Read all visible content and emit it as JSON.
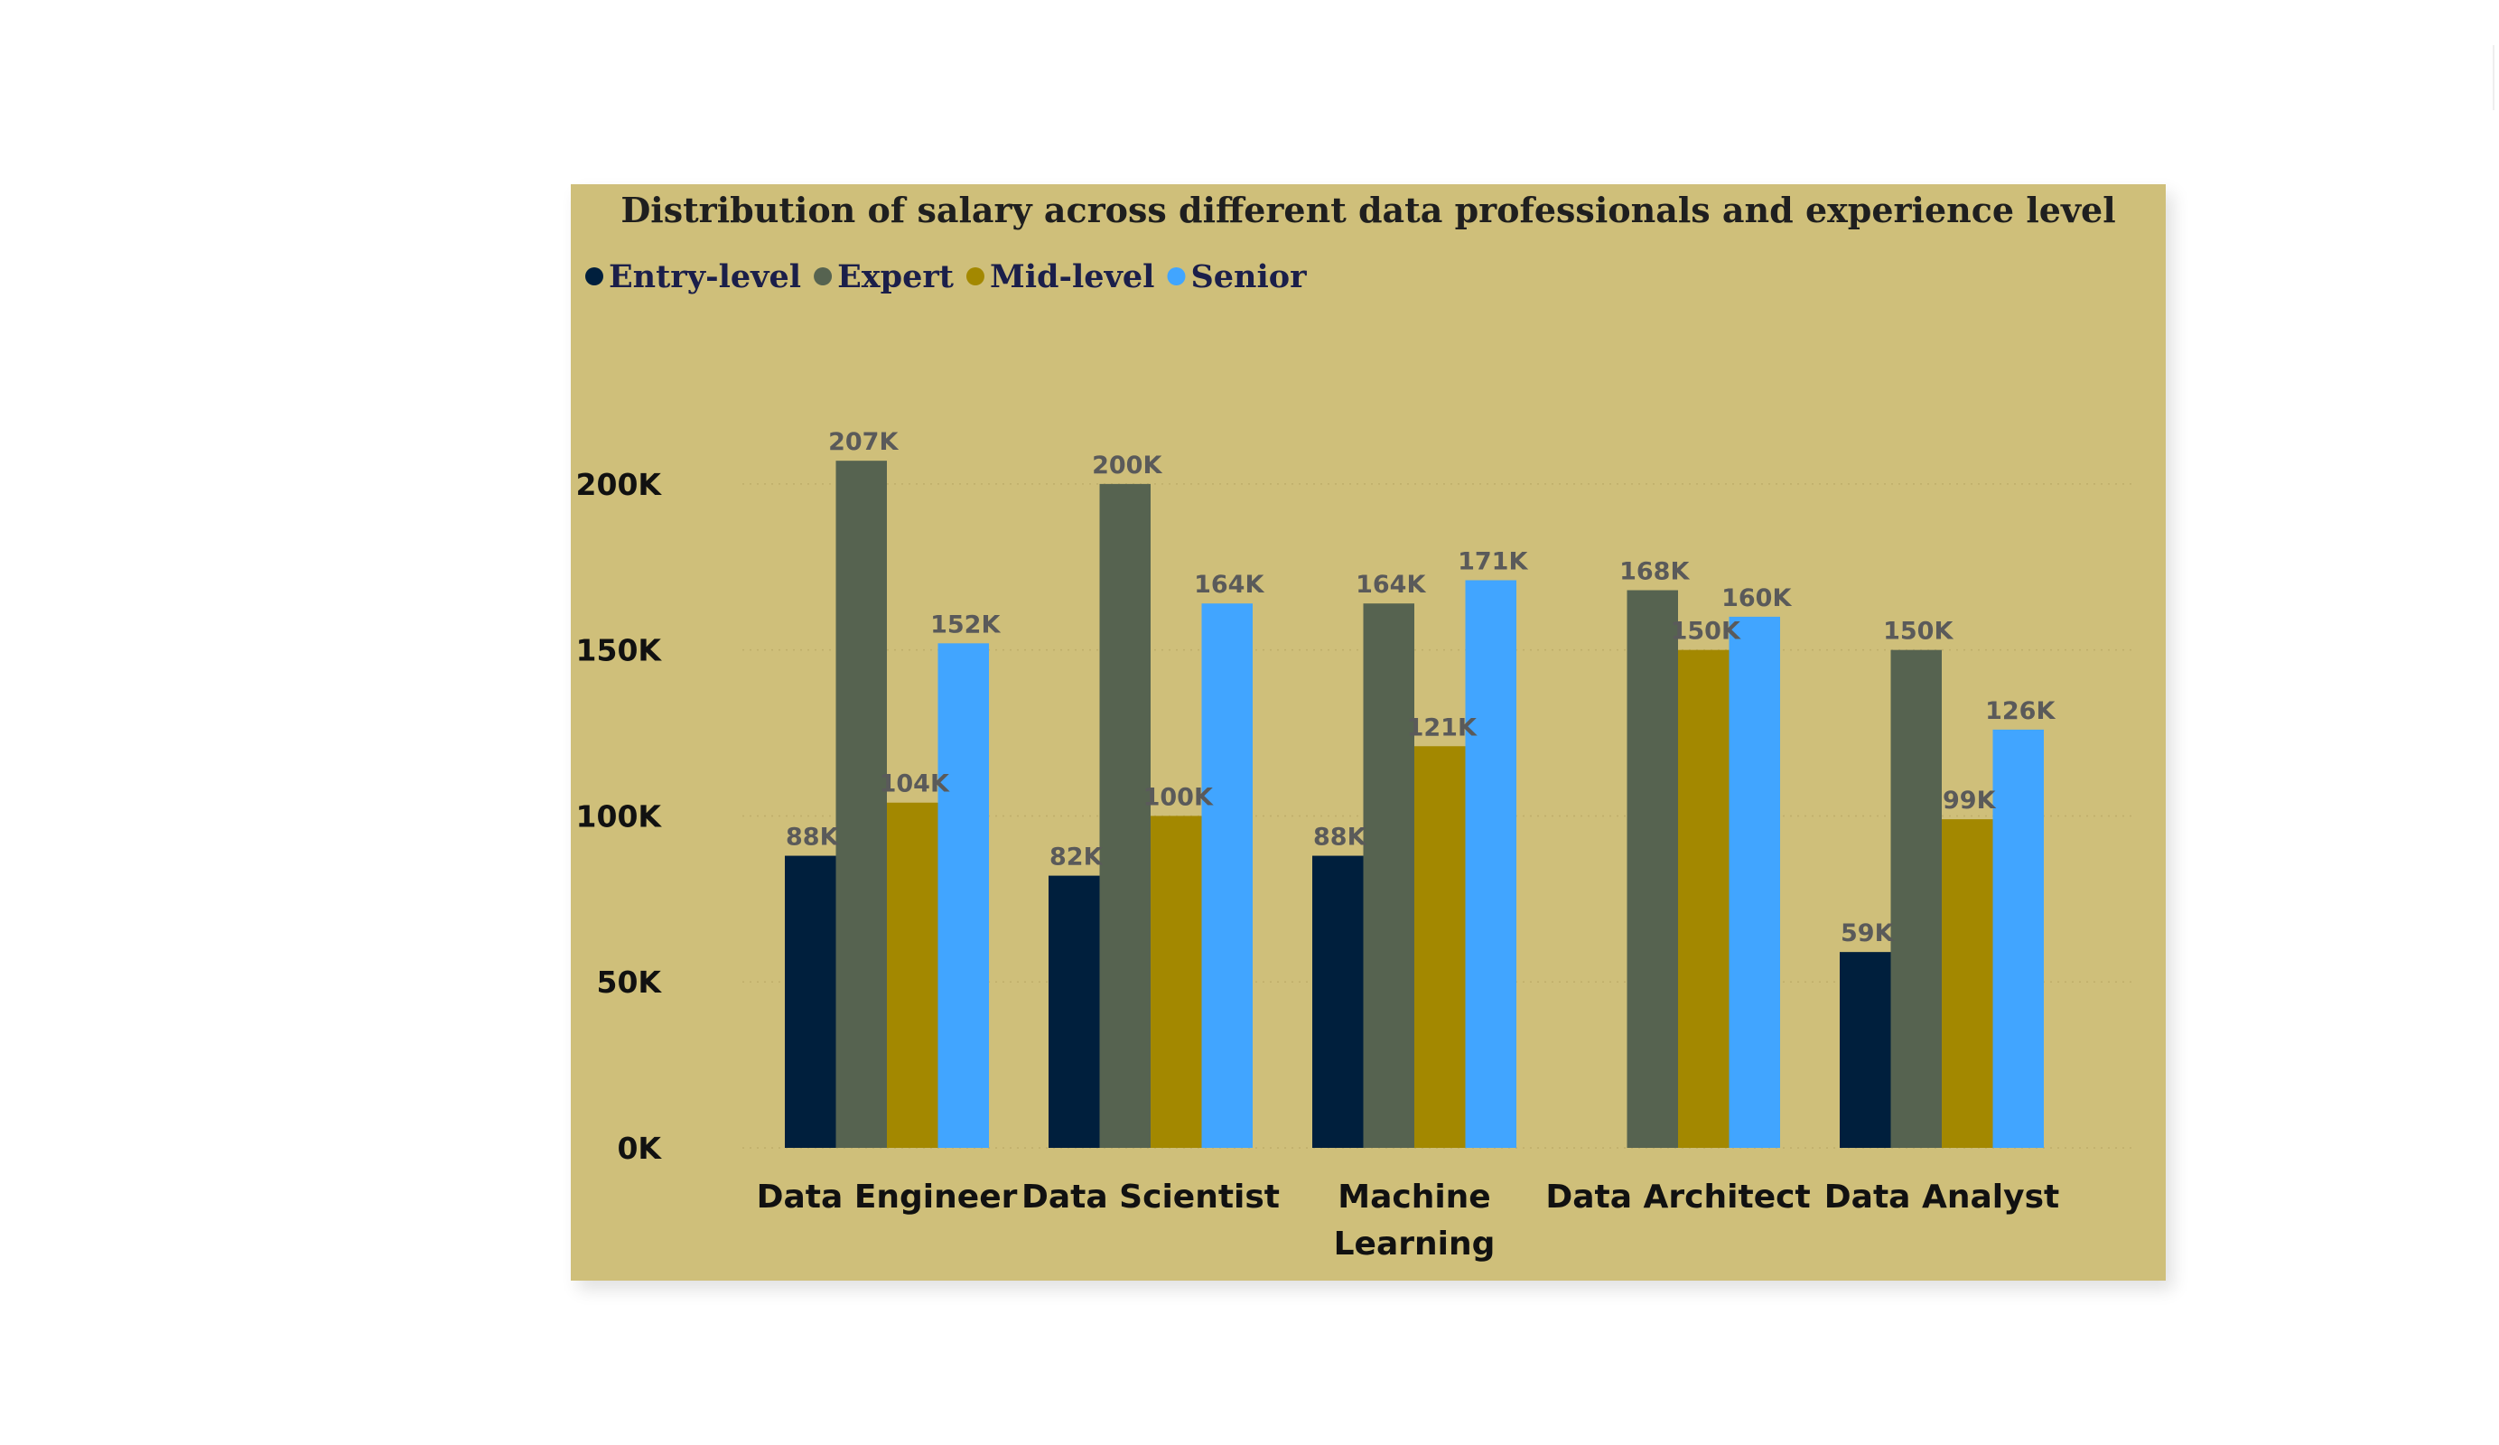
{
  "chart_data": {
    "type": "bar",
    "title": "Distribution of salary across different data professionals and experience level",
    "xlabel": "",
    "ylabel": "",
    "ylim": [
      0,
      225000
    ],
    "yticks": [
      0,
      50000,
      100000,
      150000,
      200000
    ],
    "ytick_labels": [
      "0K",
      "50K",
      "100K",
      "150K",
      "200K"
    ],
    "grid": true,
    "legend_position": "top-left",
    "categories": [
      [
        "Data Engineer"
      ],
      [
        "Data Scientist"
      ],
      [
        "Machine",
        "Learning"
      ],
      [
        "Data Architect"
      ],
      [
        "Data Analyst"
      ]
    ],
    "series": [
      {
        "name": "Entry-level",
        "color": "#001f3d",
        "values": [
          88000,
          82000,
          88000,
          null,
          59000
        ],
        "labels": [
          "88K",
          "82K",
          "88K",
          "",
          "59K"
        ]
      },
      {
        "name": "Expert",
        "color": "#566350",
        "values": [
          207000,
          200000,
          164000,
          168000,
          150000
        ],
        "labels": [
          "207K",
          "200K",
          "164K",
          "168K",
          "150K"
        ]
      },
      {
        "name": "Mid-level",
        "color": "#a38800",
        "values": [
          104000,
          100000,
          121000,
          150000,
          99000
        ],
        "labels": [
          "104K",
          "100K",
          "121K",
          "150K",
          "99K"
        ]
      },
      {
        "name": "Senior",
        "color": "#41a5ff",
        "values": [
          152000,
          164000,
          171000,
          160000,
          126000
        ],
        "labels": [
          "152K",
          "164K",
          "171K",
          "160K",
          "126K"
        ]
      }
    ],
    "background_color": "#cfbf7a"
  }
}
